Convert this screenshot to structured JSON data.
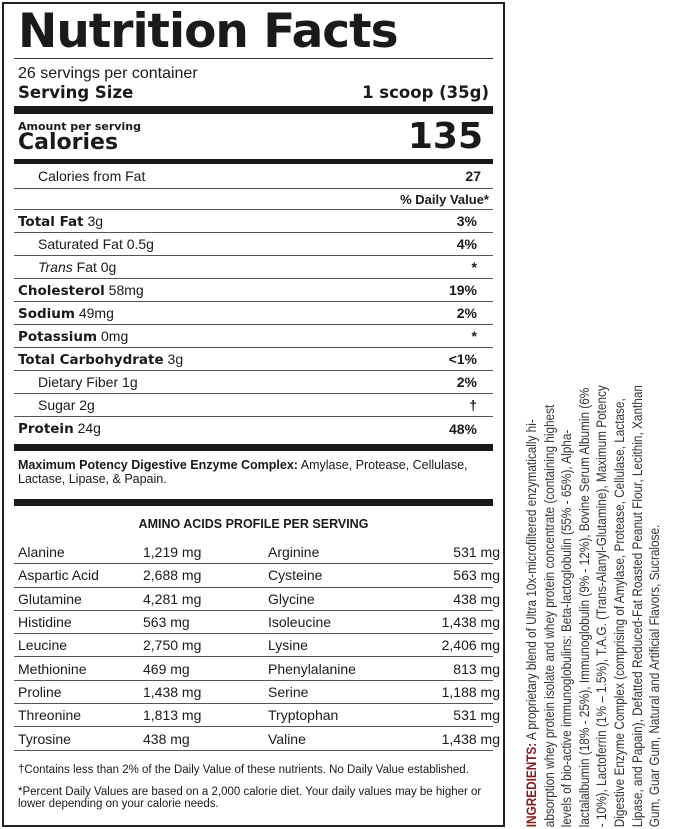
{
  "title": "Nutrition Facts",
  "servings_per_container": "26 servings per container",
  "serving_size_label": "Serving Size",
  "serving_size_value": "1 scoop (35g)",
  "amount_per_serving": "Amount per serving",
  "calories_label": "Calories",
  "calories_value": "135",
  "calories_from_fat_label": "Calories from Fat",
  "calories_from_fat_value": "27",
  "daily_value_header": "% Daily Value*",
  "nutrients": [
    {
      "name": "Total Fat",
      "amount": "3g",
      "dv": "3%",
      "bold": true,
      "indent": false
    },
    {
      "name": "Saturated Fat",
      "amount": "0.5g",
      "dv": "4%",
      "bold": false,
      "indent": true
    },
    {
      "name": "Trans",
      "name2": "Fat",
      "amount": "0g",
      "dv": "*",
      "bold": false,
      "indent": true
    },
    {
      "name": "Cholesterol",
      "amount": "58mg",
      "dv": "19%",
      "bold": true,
      "indent": false
    },
    {
      "name": "Sodium",
      "amount": "49mg",
      "dv": "2%",
      "bold": true,
      "indent": false
    },
    {
      "name": "Potassium",
      "amount": "0mg",
      "dv": "*",
      "bold": true,
      "indent": false
    },
    {
      "name": "Total Carbohydrate",
      "amount": "3g",
      "dv": "<1%",
      "bold": true,
      "indent": false
    },
    {
      "name": "Dietary Fiber",
      "amount": "1g",
      "dv": "2%",
      "bold": false,
      "indent": true
    },
    {
      "name": "Sugar",
      "amount": "2g",
      "dv": "†",
      "bold": false,
      "indent": true
    },
    {
      "name": "Protein",
      "amount": "24g",
      "dv": "48%",
      "bold": true,
      "indent": false
    }
  ],
  "enzyme_label": "Maximum Potency Digestive Enzyme Complex:",
  "enzyme_text": "Amylase, Protease, Cellulase, Lactase, Lipase, & Papain.",
  "amino_header": "AMINO ACIDS PROFILE PER SERVING",
  "amino_rows": [
    [
      "Alanine",
      "1,219 mg",
      "Arginine",
      "531 mg"
    ],
    [
      "Aspartic Acid",
      "2,688 mg",
      "Cysteine",
      "563 mg"
    ],
    [
      "Glutamine",
      "4,281 mg",
      "Glycine",
      "438 mg"
    ],
    [
      "Histidine",
      "563 mg",
      "Isoleucine",
      "1,438 mg"
    ],
    [
      "Leucine",
      "2,750 mg",
      "Lysine",
      "2,406 mg"
    ],
    [
      "Methionine",
      "469 mg",
      "Phenylalanine",
      "813 mg"
    ],
    [
      "Proline",
      "1,438 mg",
      "Serine",
      "1,188 mg"
    ],
    [
      "Threonine",
      "1,813 mg",
      "Tryptophan",
      "531 mg"
    ],
    [
      "Tyrosine",
      "438 mg",
      "Valine",
      "1,438 mg"
    ]
  ],
  "footnote_dagger": "†Contains less than 2% of the Daily Value of these nutrients. No Daily Value established.",
  "footnote_star": "*Percent Daily Values are based on a 2,000 calorie diet. Your daily values may be higher or lower depending on your calorie needs.",
  "ingredients_label": "INGREDIENTS:",
  "ingredients_text": "A proprietary blend of Ultra 10x-microfiltered enzymatically hi-absorption whey protein isolate and whey protein concentrate (containing highest levels of bio-active immunoglobulins: Beta-lactoglobulin (55% - 65%), Alpha-lactalalbumin (18% - 25%), Immunoglobulin (9% - 12%), Bovine Serum Albumin (6% - 10%), Lactoferrin (1% – 1.5%), T.A.G. (Trans-Alanyl-Glutamine), Maximum Potency Digestive Enzyme Complex (comprising of Amylase, Protease, Cellulase, Lactase, Lipase, and Papain), Defatted Reduced-Fat Roasted Peanut Flour, Lecithin, Xanthan Gum, Guar Gum, Natural and Artificial Flavors, Sucralose.",
  "accent_color": "#8b1a1a"
}
